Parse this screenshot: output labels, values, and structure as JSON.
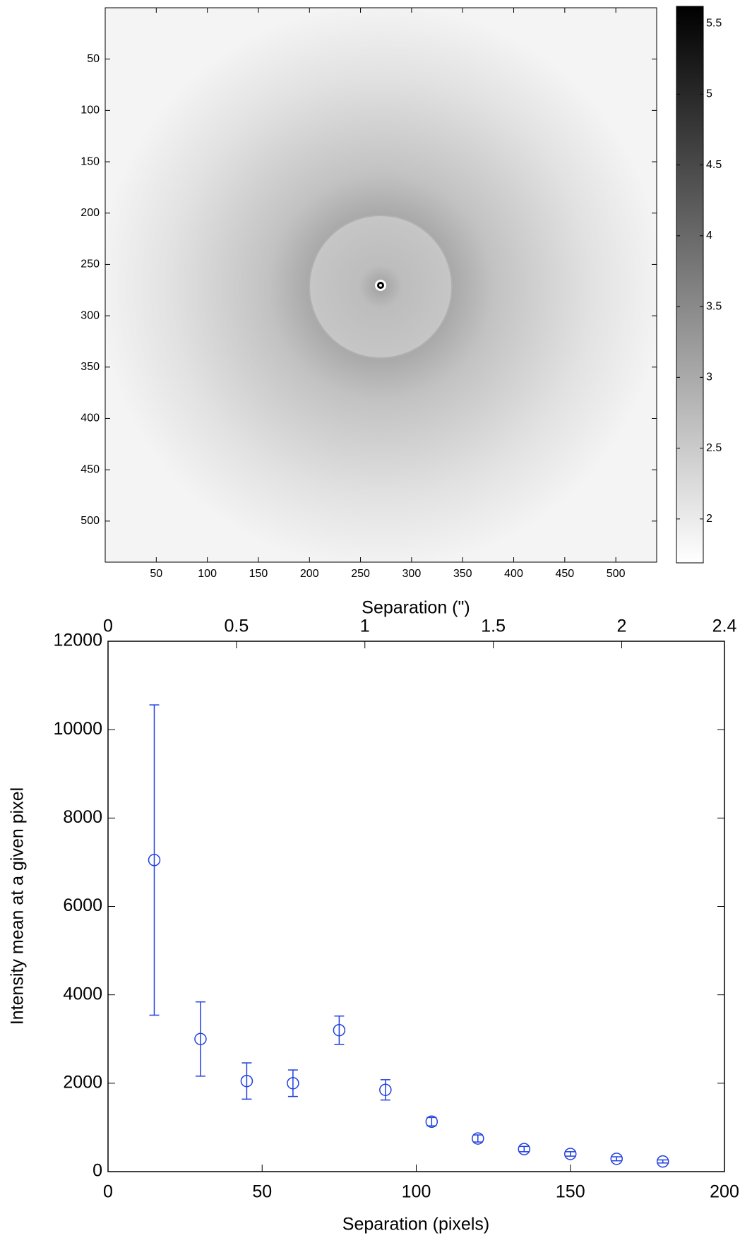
{
  "chart_data": [
    {
      "type": "image",
      "colormap": "gray",
      "xlim": [
        0,
        540
      ],
      "ylim": [
        540,
        0
      ],
      "xticks": [
        50,
        100,
        150,
        200,
        250,
        300,
        350,
        400,
        450,
        500
      ],
      "yticks": [
        50,
        100,
        150,
        200,
        250,
        300,
        350,
        400,
        450,
        500
      ],
      "clim": [
        1.69,
        5.62
      ],
      "cticks": [
        2,
        2.5,
        3,
        3.5,
        4,
        4.5,
        5,
        5.5
      ]
    },
    {
      "type": "scatter",
      "color": "#1f3fdf",
      "xlabel": "Separation (pixels)",
      "x2label": "Separation (\")",
      "ylabel": "Intensity mean at a given pixel",
      "x": [
        15,
        30,
        45,
        60,
        75,
        90,
        105,
        120,
        135,
        150,
        165,
        180
      ],
      "values": [
        7050,
        3000,
        2050,
        2000,
        3200,
        1850,
        1130,
        750,
        510,
        400,
        290,
        230
      ],
      "errors": [
        3510,
        840,
        410,
        300,
        320,
        230,
        95,
        80,
        60,
        50,
        45,
        35
      ],
      "xlim": [
        0,
        200
      ],
      "xticks": [
        0,
        50,
        100,
        150,
        200
      ],
      "x2lim": [
        0,
        2.4
      ],
      "x2ticks": [
        0,
        0.5,
        1,
        1.5,
        2,
        2.4
      ],
      "ylim": [
        0,
        12000
      ],
      "yticks": [
        0,
        2000,
        4000,
        6000,
        8000,
        10000,
        12000
      ]
    }
  ]
}
